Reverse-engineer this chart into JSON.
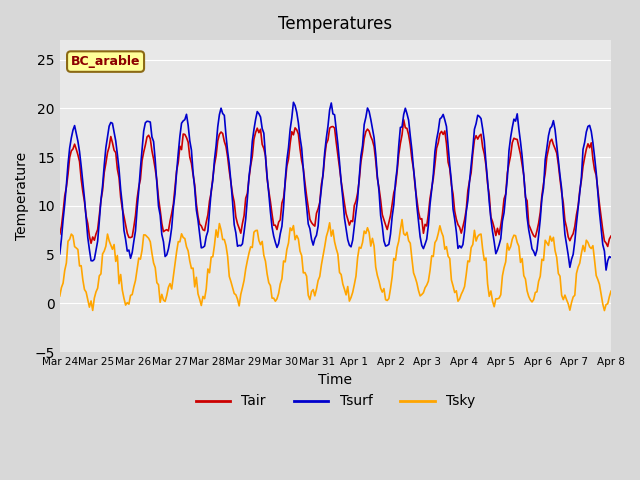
{
  "title": "Temperatures",
  "xlabel": "Time",
  "ylabel": "Temperature",
  "ylim": [
    -5,
    27
  ],
  "yticks": [
    -5,
    0,
    5,
    10,
    15,
    20,
    25
  ],
  "date_labels": [
    "Mar 24",
    "Mar 25",
    "Mar 26",
    "Mar 27",
    "Mar 28",
    "Mar 29",
    "Mar 30",
    "Mar 31",
    "Apr 1",
    "Apr 2",
    "Apr 3",
    "Apr 4",
    "Apr 5",
    "Apr 6",
    "Apr 7",
    "Apr 8"
  ],
  "annotation_text": "BC_arable",
  "annotation_color": "#8B0000",
  "annotation_bg": "#FFFF99",
  "tair_color": "#CC0000",
  "tsurf_color": "#0000CC",
  "tsky_color": "#FFA500",
  "line_width": 1.2,
  "legend_labels": [
    "Tair",
    "Tsurf",
    "Tsky"
  ],
  "n_points": 336
}
